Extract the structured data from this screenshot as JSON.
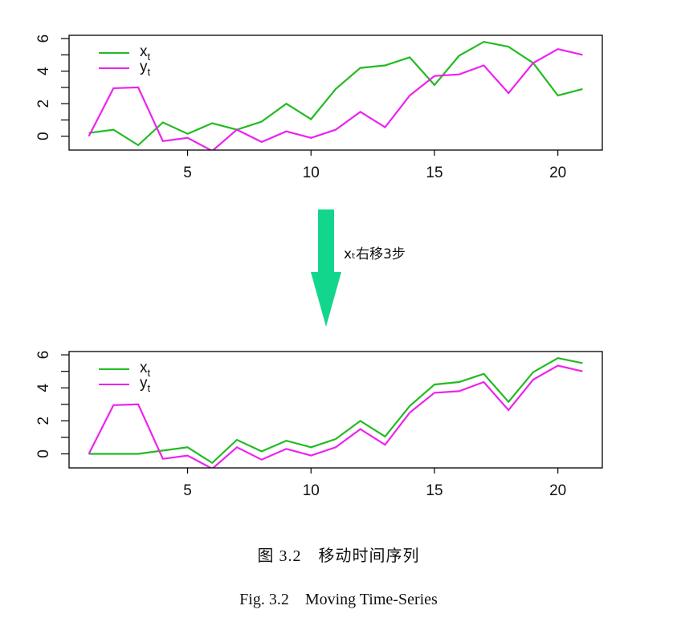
{
  "colors": {
    "x_series": "#22bb22",
    "y_series": "#ee22ee",
    "arrow": "#13d68d",
    "axis": "#000000"
  },
  "chart_data": [
    {
      "type": "line",
      "x": [
        1,
        2,
        3,
        4,
        5,
        6,
        7,
        8,
        9,
        10,
        11,
        12,
        13,
        14,
        15,
        16,
        17,
        18,
        19,
        20,
        21
      ],
      "series": [
        {
          "name": "x_t",
          "label_base": "x",
          "label_sub": "t",
          "color": "#22bb22",
          "values": [
            0.2,
            0.4,
            -0.55,
            0.85,
            0.15,
            0.8,
            0.4,
            0.9,
            2.0,
            1.05,
            2.9,
            4.2,
            4.35,
            4.85,
            3.15,
            4.95,
            5.8,
            5.5,
            4.5,
            2.5,
            2.9
          ]
        },
        {
          "name": "y_t",
          "label_base": "y",
          "label_sub": "t",
          "color": "#ee22ee",
          "values": [
            0.0,
            2.95,
            3.0,
            -0.3,
            -0.1,
            -0.9,
            0.4,
            -0.35,
            0.3,
            -0.1,
            0.4,
            1.5,
            0.55,
            2.5,
            3.7,
            3.8,
            4.35,
            2.65,
            4.5,
            5.35,
            5.0
          ]
        }
      ],
      "xticks": [
        5,
        10,
        15,
        20
      ],
      "yticks": [
        0,
        2,
        4,
        6
      ],
      "xlim": [
        0.2,
        21.8
      ],
      "ylim": [
        -0.85,
        6.2
      ],
      "legend": "top-left",
      "grid": false
    },
    {
      "type": "line",
      "x": [
        1,
        2,
        3,
        4,
        5,
        6,
        7,
        8,
        9,
        10,
        11,
        12,
        13,
        14,
        15,
        16,
        17,
        18,
        19,
        20,
        21
      ],
      "series": [
        {
          "name": "x_t",
          "label_base": "x",
          "label_sub": "t",
          "color": "#22bb22",
          "values": [
            0,
            0,
            0,
            0.2,
            0.4,
            -0.55,
            0.85,
            0.15,
            0.8,
            0.4,
            0.9,
            2.0,
            1.05,
            2.9,
            4.2,
            4.35,
            4.85,
            3.15,
            4.95,
            5.8,
            5.5
          ]
        },
        {
          "name": "y_t",
          "label_base": "y",
          "label_sub": "t",
          "color": "#ee22ee",
          "values": [
            0.0,
            2.95,
            3.0,
            -0.3,
            -0.1,
            -0.9,
            0.4,
            -0.35,
            0.3,
            -0.1,
            0.4,
            1.5,
            0.55,
            2.5,
            3.7,
            3.8,
            4.35,
            2.65,
            4.5,
            5.35,
            5.0
          ]
        }
      ],
      "xticks": [
        5,
        10,
        15,
        20
      ],
      "yticks": [
        0,
        2,
        4,
        6
      ],
      "xlim": [
        0.2,
        21.8
      ],
      "ylim": [
        -0.85,
        6.2
      ],
      "legend": "top-left",
      "grid": false
    }
  ],
  "arrow_label": "xₜ右移3步",
  "caption_cn": "图 3.2　移动时间序列",
  "caption_en": "Fig. 3.2　Moving Time-Series"
}
